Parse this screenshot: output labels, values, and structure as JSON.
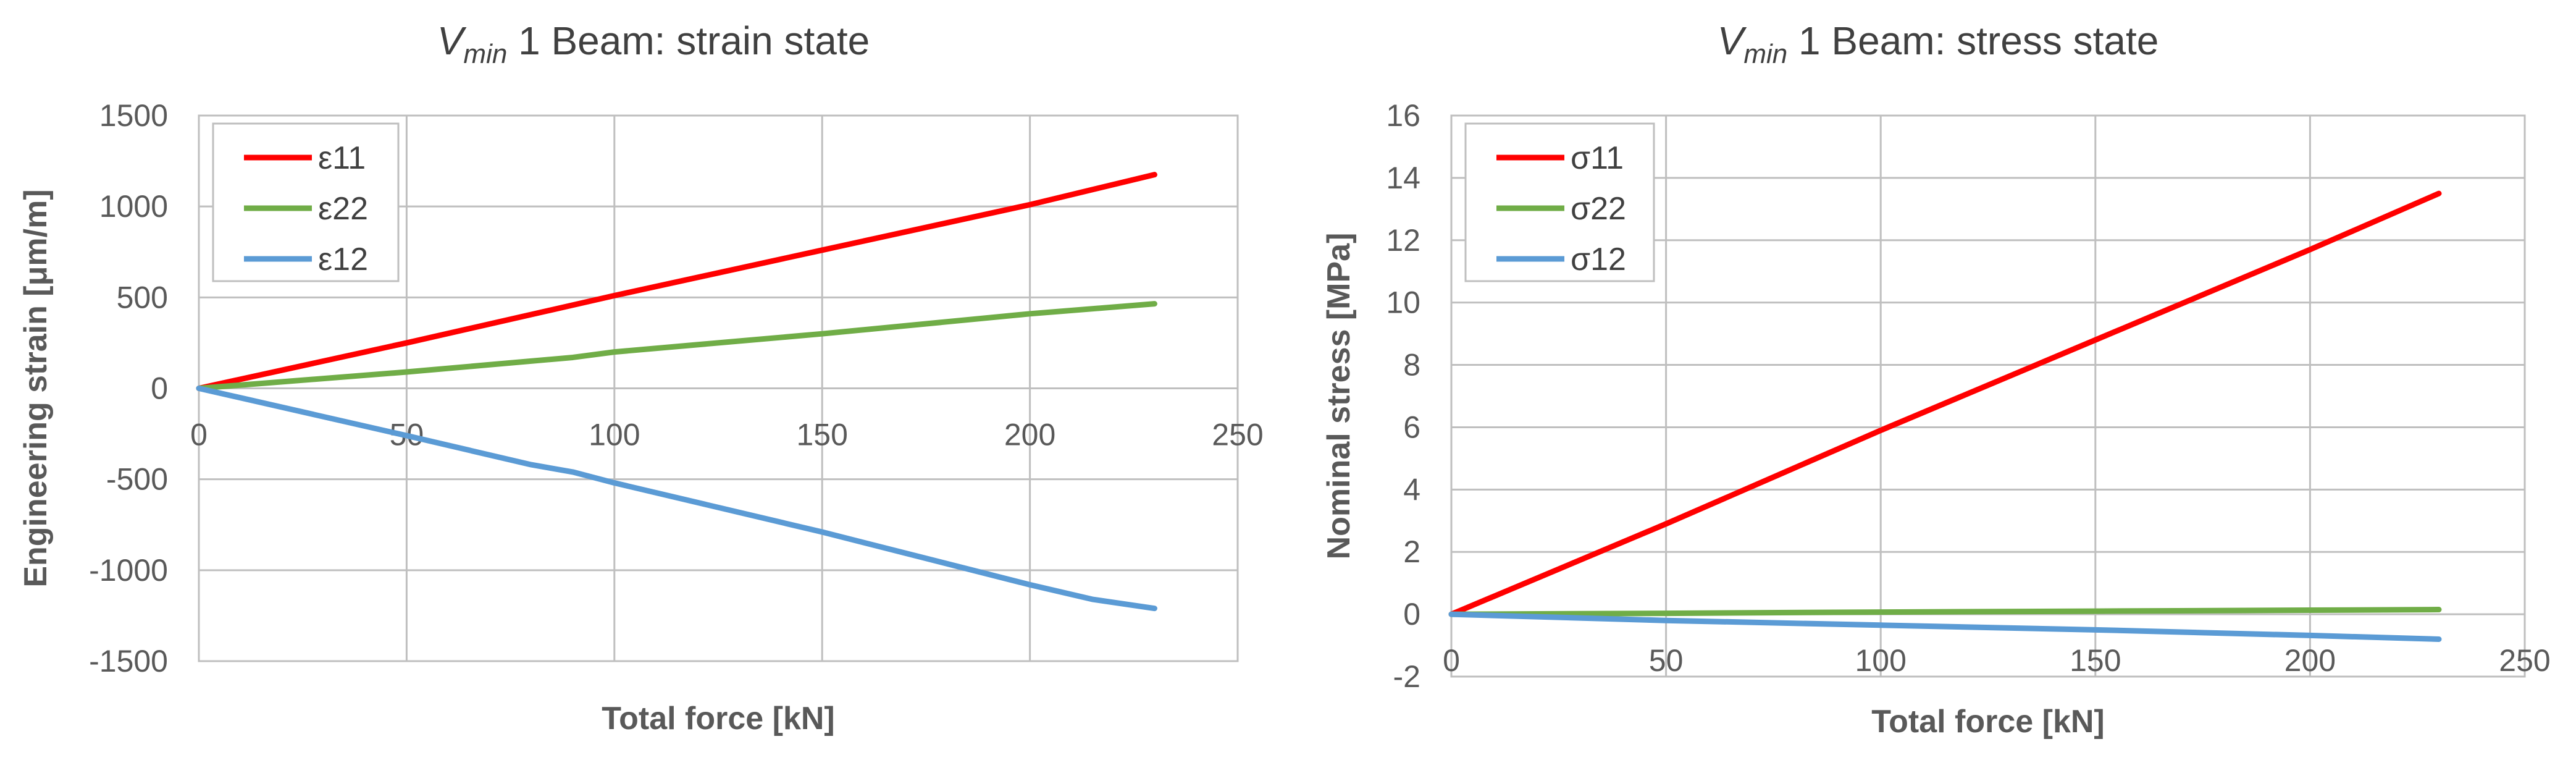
{
  "chart_data": [
    {
      "type": "line",
      "title": {
        "symbol": "V",
        "subscript": "min",
        "rest": " 1 Beam:  strain state"
      },
      "xlabel": "Total force [kN]",
      "ylabel": "Engineering strain [μm/m]",
      "xlim": [
        0,
        250
      ],
      "ylim": [
        -1500,
        1500
      ],
      "xticks": [
        0,
        50,
        100,
        150,
        200,
        250
      ],
      "yticks": [
        -1500,
        -1000,
        -500,
        0,
        500,
        1000,
        1500
      ],
      "grid": true,
      "legend_position": "top-left",
      "series": [
        {
          "name": "ε11",
          "color": "#ff0000",
          "x": [
            0,
            50,
            100,
            150,
            200,
            230
          ],
          "y": [
            0,
            250,
            510,
            760,
            1010,
            1175
          ]
        },
        {
          "name": "ε22",
          "color": "#70ad47",
          "x": [
            0,
            50,
            90,
            100,
            150,
            200,
            230
          ],
          "y": [
            0,
            90,
            170,
            200,
            300,
            410,
            465
          ]
        },
        {
          "name": "ε12",
          "color": "#5b9bd5",
          "x": [
            0,
            50,
            80,
            90,
            100,
            150,
            200,
            215,
            230
          ],
          "y": [
            0,
            -260,
            -420,
            -460,
            -520,
            -790,
            -1080,
            -1160,
            -1210
          ]
        }
      ]
    },
    {
      "type": "line",
      "title": {
        "symbol": "V",
        "subscript": "min",
        "rest": " 1 Beam:  stress state"
      },
      "xlabel": "Total force [kN]",
      "ylabel": "Nominal stress [MPa]",
      "xlim": [
        0,
        250
      ],
      "ylim": [
        -2,
        16
      ],
      "xticks": [
        0,
        50,
        100,
        150,
        200,
        250
      ],
      "yticks": [
        -2,
        0,
        2,
        4,
        6,
        8,
        10,
        12,
        14,
        16
      ],
      "grid": true,
      "legend_position": "top-left",
      "series": [
        {
          "name": "σ11",
          "color": "#ff0000",
          "x": [
            0,
            50,
            100,
            150,
            200,
            230
          ],
          "y": [
            0,
            2.9,
            5.9,
            8.8,
            11.7,
            13.5
          ]
        },
        {
          "name": "σ22",
          "color": "#70ad47",
          "x": [
            0,
            50,
            100,
            150,
            200,
            230
          ],
          "y": [
            0,
            0.03,
            0.07,
            0.1,
            0.13,
            0.15
          ]
        },
        {
          "name": "σ12",
          "color": "#5b9bd5",
          "x": [
            0,
            50,
            100,
            150,
            200,
            230
          ],
          "y": [
            0,
            -0.2,
            -0.35,
            -0.5,
            -0.68,
            -0.8
          ]
        }
      ]
    }
  ]
}
